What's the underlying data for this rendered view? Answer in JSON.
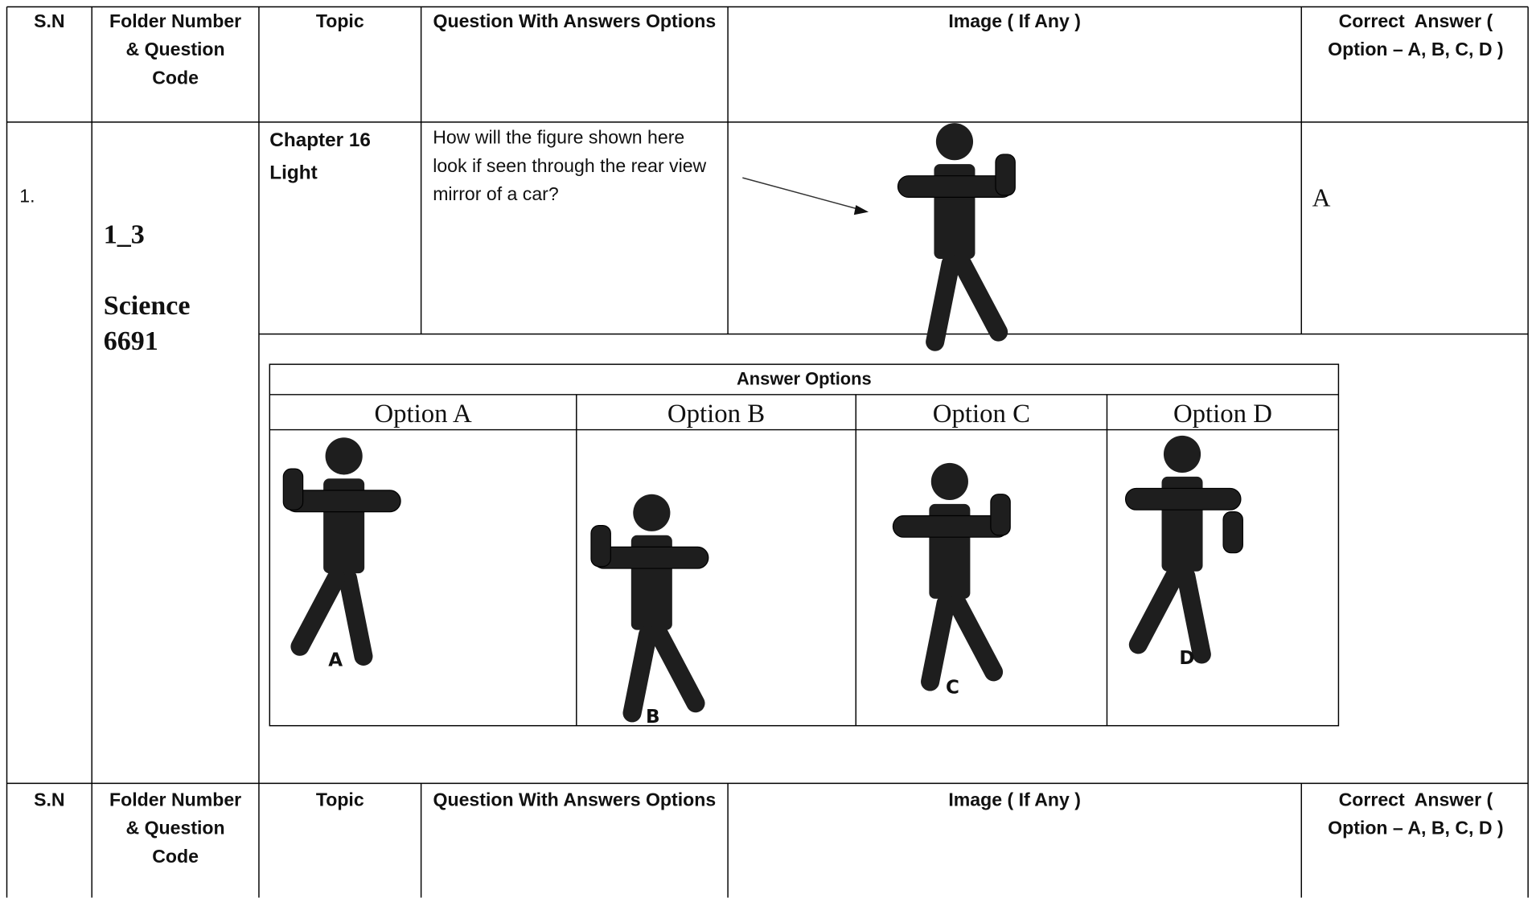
{
  "header": {
    "columns": [
      "S.N",
      "Folder Number & Question Code",
      "Topic",
      "Question With Answers Options",
      "Image ( If Any )",
      "Correct  Answer ( Option – A, B, C, D )"
    ]
  },
  "rows": [
    {
      "sn": "1.",
      "folder_number": "1_3",
      "question_code": "Science 6691",
      "topic": "Chapter 16 Light",
      "question": "How will the figure shown here  look if seen through the rear view mirror of a car?",
      "correct_answer": "A"
    }
  ],
  "answer_options": {
    "title": "Answer Options",
    "options": [
      "Option A",
      "Option B",
      "Option C",
      "Option D"
    ],
    "figure_labels": [
      "A",
      "B",
      "C",
      "D"
    ]
  }
}
